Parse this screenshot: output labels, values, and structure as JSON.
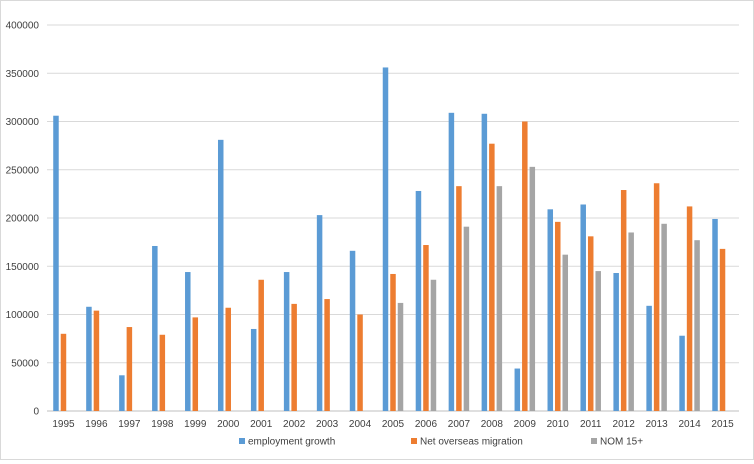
{
  "chart_data": {
    "type": "bar",
    "title": "",
    "xlabel": "",
    "ylabel": "",
    "ylim": [
      0,
      400000
    ],
    "yticks": [
      0,
      50000,
      100000,
      150000,
      200000,
      250000,
      300000,
      350000,
      400000
    ],
    "grid": true,
    "legend_position": "bottom",
    "categories": [
      "1995",
      "1996",
      "1997",
      "1998",
      "1999",
      "2000",
      "2001",
      "2002",
      "2003",
      "2004",
      "2005",
      "2006",
      "2007",
      "2008",
      "2009",
      "2010",
      "2011",
      "2012",
      "2013",
      "2014",
      "2015"
    ],
    "series": [
      {
        "name": "employment growth",
        "color": "#5b9bd5",
        "values": [
          306000,
          108000,
          37000,
          171000,
          144000,
          281000,
          85000,
          144000,
          203000,
          166000,
          356000,
          228000,
          309000,
          308000,
          44000,
          209000,
          214000,
          143000,
          109000,
          78000,
          199000
        ]
      },
      {
        "name": "Net overseas migration",
        "color": "#ed7d31",
        "values": [
          80000,
          104000,
          87000,
          79000,
          97000,
          107000,
          136000,
          111000,
          116000,
          100000,
          142000,
          172000,
          233000,
          277000,
          300000,
          196000,
          181000,
          229000,
          236000,
          212000,
          168000
        ]
      },
      {
        "name": "NOM 15+",
        "color": "#a5a5a5",
        "values": [
          null,
          null,
          null,
          null,
          null,
          null,
          null,
          null,
          null,
          null,
          112000,
          136000,
          191000,
          233000,
          253000,
          162000,
          145000,
          185000,
          194000,
          177000,
          null
        ]
      }
    ]
  }
}
